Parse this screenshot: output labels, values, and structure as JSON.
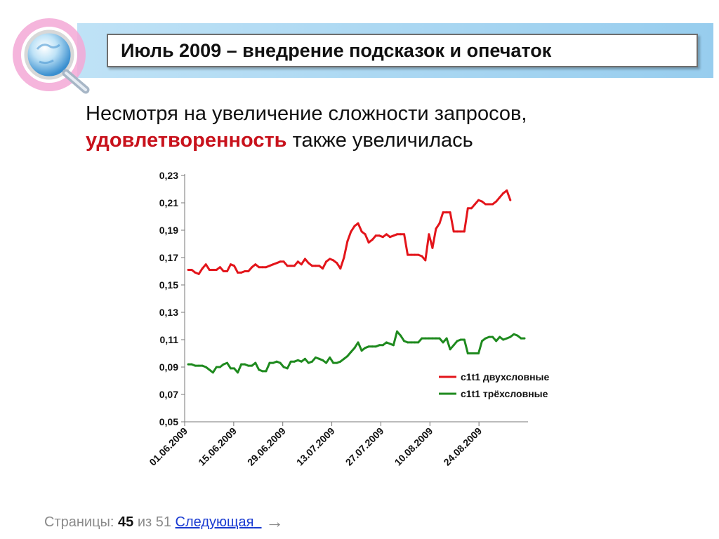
{
  "header": {
    "title": "Июль 2009 – внедрение подсказок и опечаток"
  },
  "subtitle": {
    "line1": "Несмотря на увеличение сложности запросов,",
    "accent": "удовлетворенность",
    "rest": "также увеличилась"
  },
  "chart_data": {
    "type": "line",
    "y_ticks": [
      "0,23",
      "0,21",
      "0,19",
      "0,17",
      "0,15",
      "0,13",
      "0,11",
      "0,09",
      "0,07",
      "0,05"
    ],
    "ylim": [
      0.05,
      0.23
    ],
    "x_ticks": [
      "01.06.2009",
      "15.06.2009",
      "29.06.2009",
      "13.07.2009",
      "27.07.2009",
      "10.08.2009",
      "24.08.2009"
    ],
    "grid": false,
    "legend_position": "right-inside",
    "series": [
      {
        "name": "c1t1 двухсловные",
        "color": "#e3151b",
        "values": [
          0.161,
          0.161,
          0.159,
          0.158,
          0.162,
          0.165,
          0.161,
          0.161,
          0.161,
          0.163,
          0.16,
          0.16,
          0.165,
          0.164,
          0.159,
          0.159,
          0.16,
          0.16,
          0.163,
          0.165,
          0.163,
          0.163,
          0.163,
          0.164,
          0.165,
          0.166,
          0.167,
          0.167,
          0.164,
          0.164,
          0.164,
          0.167,
          0.165,
          0.169,
          0.166,
          0.164,
          0.164,
          0.164,
          0.162,
          0.167,
          0.169,
          0.168,
          0.166,
          0.162,
          0.17,
          0.182,
          0.189,
          0.193,
          0.195,
          0.189,
          0.187,
          0.181,
          0.183,
          0.186,
          0.186,
          0.185,
          0.187,
          0.185,
          0.186,
          0.187,
          0.187,
          0.187,
          0.172,
          0.172,
          0.172,
          0.172,
          0.171,
          0.168,
          0.187,
          0.177,
          0.191,
          0.195,
          0.203,
          0.203,
          0.203,
          0.189,
          0.189,
          0.189,
          0.189,
          0.206,
          0.206,
          0.209,
          0.212,
          0.211,
          0.209,
          0.209,
          0.209,
          0.211,
          0.214,
          0.217,
          0.219,
          0.212
        ]
      },
      {
        "name": "c1t1 трёхсловные",
        "color": "#1e8a1e",
        "values": [
          0.092,
          0.092,
          0.091,
          0.091,
          0.091,
          0.09,
          0.088,
          0.086,
          0.09,
          0.09,
          0.092,
          0.093,
          0.089,
          0.089,
          0.086,
          0.092,
          0.092,
          0.091,
          0.091,
          0.093,
          0.088,
          0.087,
          0.087,
          0.093,
          0.093,
          0.094,
          0.093,
          0.09,
          0.089,
          0.094,
          0.094,
          0.095,
          0.094,
          0.096,
          0.093,
          0.094,
          0.097,
          0.096,
          0.095,
          0.093,
          0.097,
          0.093,
          0.093,
          0.094,
          0.096,
          0.098,
          0.101,
          0.104,
          0.108,
          0.102,
          0.104,
          0.105,
          0.105,
          0.105,
          0.106,
          0.106,
          0.108,
          0.107,
          0.106,
          0.116,
          0.113,
          0.109,
          0.108,
          0.108,
          0.108,
          0.108,
          0.111,
          0.111,
          0.111,
          0.111,
          0.111,
          0.111,
          0.108,
          0.111,
          0.103,
          0.106,
          0.109,
          0.11,
          0.11,
          0.1,
          0.1,
          0.1,
          0.1,
          0.109,
          0.111,
          0.112,
          0.112,
          0.109,
          0.112,
          0.11,
          0.111,
          0.112,
          0.114,
          0.113,
          0.111,
          0.111
        ]
      }
    ]
  },
  "pager": {
    "label": "Страницы:",
    "current": "45",
    "of": "из 51",
    "next": "Следующая",
    "arrow": "→"
  }
}
